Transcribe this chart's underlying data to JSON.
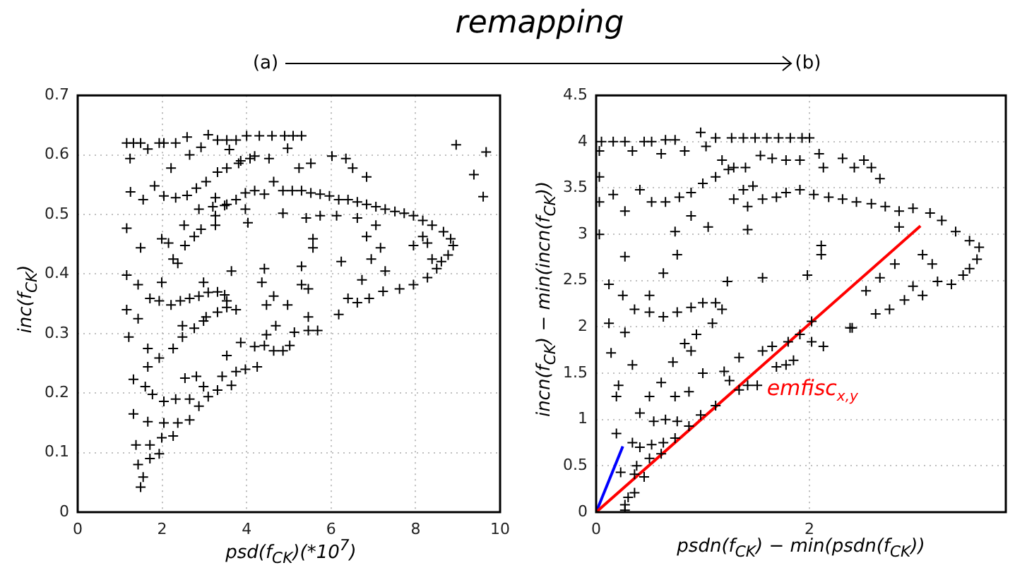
{
  "chart_data": [
    {
      "type": "scatter",
      "title": "remapping",
      "xlabel": "psd(f$_{CK}$)(*10$^{7}$)",
      "ylabel": "inc(f$_{CK}$)",
      "annotations": [
        "(a)"
      ],
      "xlim": [
        0,
        10
      ],
      "ylim": [
        0,
        0.7
      ],
      "xticks": [
        0,
        2,
        4,
        6,
        8,
        10
      ],
      "yticks": [
        0,
        0.1,
        0.2,
        0.3,
        0.4,
        0.5,
        0.6,
        0.7
      ],
      "grid": true,
      "marker": "cross",
      "legend": false,
      "series": [
        {
          "color": "#000000",
          "x": [
            1.16,
            1.32,
            1.49,
            1.66,
            1.93,
            2.04,
            2.32,
            2.59,
            3.09,
            3.31,
            3.53,
            3.75,
            4.0,
            4.3,
            4.6,
            4.9,
            5.1,
            5.3,
            1.24,
            2.21,
            2.65,
            2.92,
            3.59,
            3.86,
            4.19,
            4.53,
            4.97,
            5.24,
            5.52,
            6.02,
            6.35,
            6.51,
            6.84,
            8.96,
            9.67,
            9.38,
            9.6,
            1.25,
            1.55,
            1.82,
            2.04,
            2.32,
            2.59,
            2.81,
            3.04,
            3.31,
            3.53,
            3.81,
            4.08,
            3.26,
            3.53,
            3.75,
            3.97,
            4.19,
            4.42,
            4.64,
            4.86,
            5.08,
            5.3,
            5.52,
            5.74,
            5.96,
            6.18,
            6.4,
            6.62,
            6.84,
            7.06,
            7.28,
            7.51,
            7.73,
            7.95,
            8.17,
            8.39,
            8.66,
            8.83,
            8.89,
            8.77,
            8.61,
            8.5,
            8.28,
            7.95,
            7.62,
            7.23,
            6.9,
            6.62,
            6.18,
            4.86,
            5.41,
            5.74,
            6.13,
            6.62,
            7.06,
            6.84,
            7.17,
            6.95,
            7.28,
            6.73,
            6.4,
            5.57,
            5.57,
            5.3,
            5.46,
            5.3,
            6.24,
            7.95,
            8.17,
            8.28,
            8.39,
            1.71,
            1.93,
            2.21,
            2.43,
            2.65,
            2.87,
            3.09,
            3.31,
            3.48,
            3.53,
            3.53,
            3.31,
            3.04,
            2.76,
            2.48,
            2.26,
            1.16,
            1.49,
            1.16,
            1.43,
            1.16,
            1.43,
            1.21,
            1.66,
            1.93,
            1.66,
            1.32,
            1.6,
            1.77,
            2.04,
            2.32,
            2.65,
            2.87,
            3.09,
            3.31,
            1.32,
            1.66,
            2.04,
            2.37,
            2.65,
            1.38,
            1.71,
            1.99,
            2.26,
            1.43,
            1.71,
            1.93,
            1.55,
            1.49,
            2.54,
            2.81,
            2.98,
            3.42,
            3.64,
            3.75,
            3.97,
            4.25,
            3.53,
            3.86,
            4.19,
            4.42,
            4.64,
            4.86,
            5.02,
            4.47,
            4.69,
            5.13,
            5.46,
            5.68,
            5.46,
            1.99,
            2.15,
            2.26,
            2.37,
            2.54,
            2.76,
            2.92,
            2.52,
            3.26,
            3.26,
            2.87,
            3.2,
            3.48,
            3.64,
            4.36,
            4.42,
            4.64,
            4.47,
            4.97,
            1.99,
            2.98,
            4.03,
            3.97,
            2.48,
            2.98,
            3.75
          ],
          "values": [
            0.62,
            0.62,
            0.62,
            0.61,
            0.62,
            0.62,
            0.62,
            0.63,
            0.634,
            0.625,
            0.625,
            0.625,
            0.632,
            0.632,
            0.632,
            0.632,
            0.632,
            0.632,
            0.594,
            0.578,
            0.6,
            0.613,
            0.609,
            0.59,
            0.598,
            0.594,
            0.611,
            0.578,
            0.586,
            0.598,
            0.594,
            0.578,
            0.563,
            0.617,
            0.605,
            0.567,
            0.53,
            0.538,
            0.525,
            0.548,
            0.531,
            0.528,
            0.532,
            0.544,
            0.555,
            0.571,
            0.578,
            0.586,
            0.594,
            0.528,
            0.517,
            0.525,
            0.536,
            0.54,
            0.534,
            0.555,
            0.54,
            0.54,
            0.54,
            0.536,
            0.534,
            0.531,
            0.525,
            0.525,
            0.521,
            0.517,
            0.513,
            0.509,
            0.505,
            0.502,
            0.498,
            0.49,
            0.482,
            0.471,
            0.459,
            0.448,
            0.432,
            0.421,
            0.409,
            0.394,
            0.382,
            0.375,
            0.371,
            0.359,
            0.352,
            0.332,
            0.502,
            0.494,
            0.498,
            0.498,
            0.494,
            0.482,
            0.463,
            0.444,
            0.425,
            0.405,
            0.39,
            0.359,
            0.459,
            0.444,
            0.413,
            0.375,
            0.382,
            0.421,
            0.448,
            0.463,
            0.452,
            0.425,
            0.359,
            0.355,
            0.348,
            0.355,
            0.359,
            0.363,
            0.369,
            0.37,
            0.365,
            0.355,
            0.344,
            0.336,
            0.328,
            0.309,
            0.294,
            0.275,
            0.477,
            0.444,
            0.398,
            0.382,
            0.34,
            0.325,
            0.294,
            0.275,
            0.259,
            0.244,
            0.223,
            0.211,
            0.198,
            0.186,
            0.19,
            0.19,
            0.178,
            0.194,
            0.205,
            0.165,
            0.152,
            0.15,
            0.15,
            0.155,
            0.113,
            0.113,
            0.125,
            0.128,
            0.08,
            0.09,
            0.098,
            0.059,
            0.042,
            0.225,
            0.228,
            0.211,
            0.228,
            0.213,
            0.236,
            0.24,
            0.244,
            0.263,
            0.285,
            0.278,
            0.28,
            0.271,
            0.271,
            0.28,
            0.298,
            0.313,
            0.302,
            0.305,
            0.305,
            0.328,
            0.459,
            0.452,
            0.425,
            0.418,
            0.448,
            0.463,
            0.475,
            0.482,
            0.482,
            0.498,
            0.509,
            0.513,
            0.515,
            0.405,
            0.386,
            0.409,
            0.363,
            0.348,
            0.348,
            0.386,
            0.386,
            0.486,
            0.509,
            0.313,
            0.321,
            0.34
          ]
        }
      ]
    },
    {
      "type": "scatter",
      "xlabel": "psdn(f$_{CK}$) − min(psdn(f$_{CK}$))",
      "ylabel": "incn(f$_{CK}$) − min(incn(f$_{CK}$))",
      "annotations": [
        "(b)",
        {
          "text": "emfisc$_{x,y}$",
          "x": 1.6,
          "y": 1.32
        }
      ],
      "xlim": [
        0,
        3.84
      ],
      "ylim": [
        0,
        4.5
      ],
      "xticks": [
        0,
        2
      ],
      "yticks": [
        0,
        0.5,
        1,
        1.5,
        2,
        2.5,
        3,
        3.5,
        4,
        4.5
      ],
      "grid": true,
      "legend": false,
      "series": [
        {
          "color": "#000000",
          "marker": "cross",
          "x": [
            0.05,
            0.16,
            0.27,
            0.45,
            0.52,
            0.65,
            0.74,
            0.98,
            1.12,
            1.27,
            1.38,
            1.49,
            1.6,
            1.71,
            1.82,
            1.93,
            2.0,
            0.03,
            0.34,
            0.61,
            0.83,
            1.03,
            1.18,
            1.29,
            1.4,
            1.54,
            1.65,
            1.78,
            1.91,
            2.09,
            2.13,
            2.31,
            2.42,
            2.51,
            2.58,
            2.66,
            0.03,
            0.16,
            0.41,
            0.03,
            0.27,
            0.52,
            0.65,
            0.78,
            0.89,
            1.0,
            1.12,
            1.24,
            1.38,
            1.47,
            1.29,
            1.42,
            1.56,
            1.69,
            1.78,
            1.91,
            2.04,
            2.18,
            2.31,
            2.44,
            2.58,
            2.71,
            2.84,
            2.97,
            3.13,
            3.24,
            3.37,
            3.5,
            3.59,
            3.57,
            3.5,
            3.44,
            3.33,
            3.2,
            3.06,
            2.97,
            2.89,
            2.75,
            2.62,
            2.4,
            2.53,
            2.66,
            2.8,
            3.06,
            3.15,
            2.84,
            0.03,
            0.27,
            0.12,
            0.25,
            0.5,
            0.63,
            0.74,
            0.89,
            1.05,
            1.42,
            0.76,
            1.23,
            1.56,
            0.36,
            0.5,
            0.63,
            0.76,
            0.89,
            1.0,
            1.12,
            1.18,
            1.09,
            0.94,
            0.83,
            0.89,
            0.72,
            0.12,
            0.27,
            0.14,
            0.34,
            0.21,
            0.19,
            0.41,
            0.54,
            0.65,
            0.76,
            0.5,
            0.61,
            0.74,
            0.87,
            1.0,
            1.2,
            1.25,
            1.34,
            1.42,
            1.51,
            1.34,
            1.56,
            1.65,
            1.69,
            1.78,
            1.85,
            1.8,
            1.91,
            2.02,
            2.13,
            2.02,
            1.98,
            2.11,
            2.11,
            2.38,
            0.19,
            0.34,
            0.41,
            0.52,
            0.63,
            0.74,
            0.87,
            0.98,
            1.12,
            0.38,
            0.5,
            0.61,
            0.23,
            0.36,
            0.45,
            0.3,
            0.36,
            0.27,
            0.27
          ],
          "values": [
            4.0,
            4.0,
            4.0,
            4.0,
            4.0,
            4.02,
            4.02,
            4.1,
            4.04,
            4.04,
            4.04,
            4.04,
            4.04,
            4.04,
            4.04,
            4.04,
            4.04,
            3.9,
            3.9,
            3.87,
            3.9,
            3.95,
            3.8,
            3.72,
            3.72,
            3.85,
            3.82,
            3.8,
            3.8,
            3.87,
            3.72,
            3.82,
            3.72,
            3.8,
            3.72,
            3.6,
            3.62,
            3.43,
            3.48,
            3.35,
            3.25,
            3.35,
            3.35,
            3.4,
            3.45,
            3.55,
            3.62,
            3.7,
            3.48,
            3.52,
            3.38,
            3.3,
            3.38,
            3.4,
            3.45,
            3.48,
            3.43,
            3.4,
            3.38,
            3.35,
            3.33,
            3.3,
            3.25,
            3.28,
            3.23,
            3.15,
            3.03,
            2.93,
            2.86,
            2.73,
            2.63,
            2.56,
            2.46,
            2.49,
            2.34,
            2.44,
            2.29,
            2.19,
            2.14,
            1.99,
            2.39,
            2.53,
            2.68,
            2.78,
            2.68,
            3.08,
            3.0,
            2.76,
            2.46,
            2.34,
            2.34,
            2.58,
            3.03,
            3.2,
            3.08,
            3.05,
            2.78,
            2.49,
            2.53,
            2.19,
            2.16,
            2.11,
            2.16,
            2.21,
            2.26,
            2.26,
            2.19,
            2.04,
            1.92,
            1.82,
            1.74,
            1.62,
            2.04,
            1.94,
            1.72,
            1.59,
            1.37,
            1.25,
            1.07,
            0.98,
            1.0,
            0.98,
            1.25,
            1.4,
            1.25,
            1.3,
            1.5,
            1.52,
            1.42,
            1.32,
            1.37,
            1.37,
            1.67,
            1.74,
            1.79,
            1.57,
            1.59,
            1.64,
            1.84,
            1.92,
            1.84,
            1.79,
            2.06,
            2.56,
            2.88,
            2.78,
            1.99,
            0.85,
            0.75,
            0.7,
            0.73,
            0.75,
            0.8,
            0.93,
            1.05,
            1.15,
            0.5,
            0.58,
            0.63,
            0.43,
            0.41,
            0.38,
            0.16,
            0.21,
            0.08,
            0.02
          ]
        },
        {
          "type": "line",
          "marker": "none",
          "color": "#ff0000",
          "x": [
            0,
            3.04
          ],
          "values": [
            0,
            3.09
          ]
        },
        {
          "type": "line",
          "marker": "none",
          "color": "#0000ff",
          "x": [
            0,
            0.25
          ],
          "values": [
            0,
            0.71
          ]
        }
      ]
    }
  ]
}
